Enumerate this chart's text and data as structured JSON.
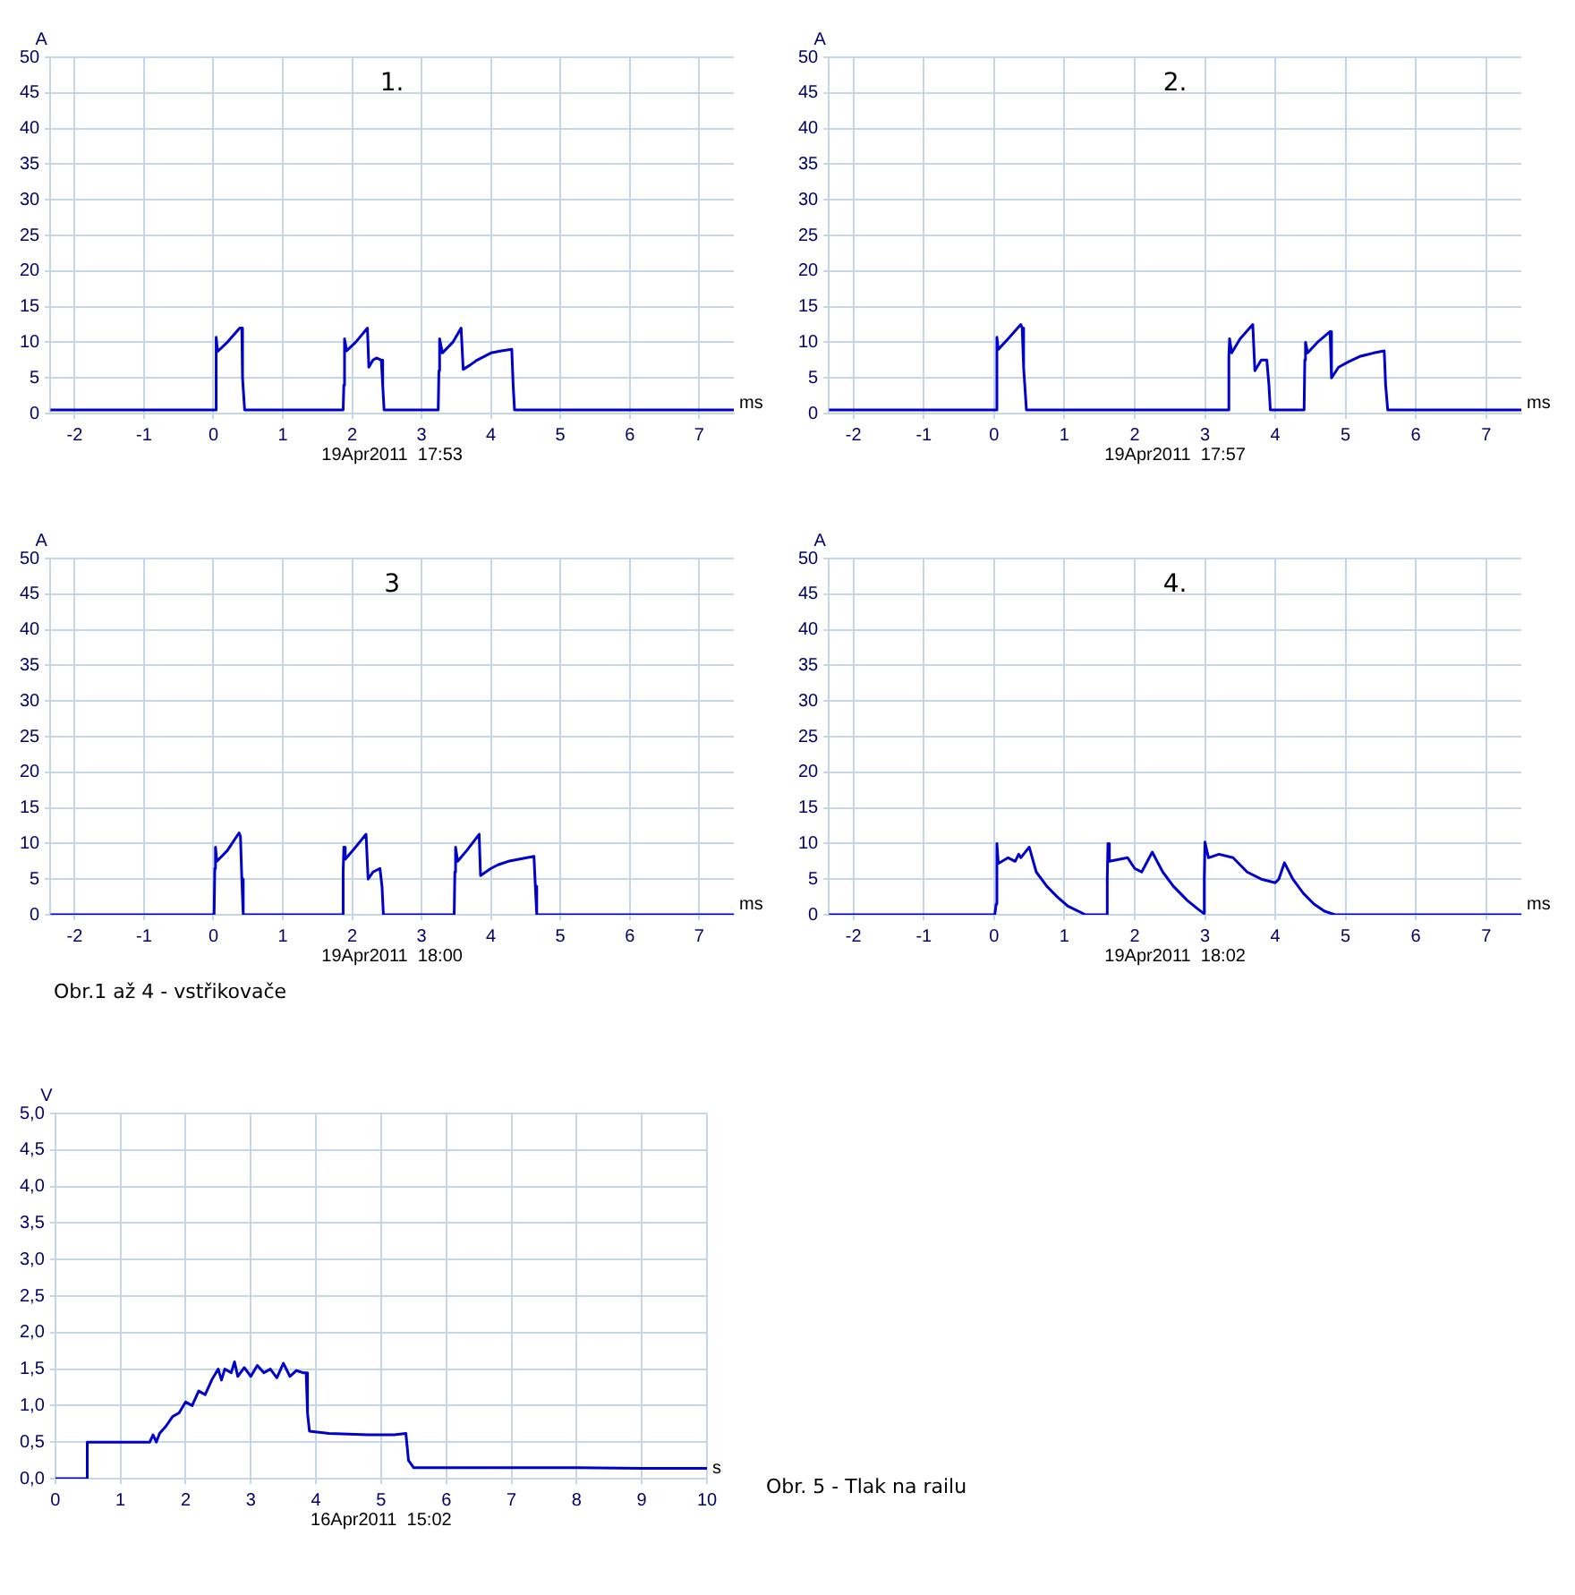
{
  "chart_data": [
    {
      "type": "line",
      "title": "1.",
      "xlabel": "ms",
      "ylabel": "A",
      "annotations": [
        "19Apr2011  17:53"
      ],
      "grid": true,
      "legend": false,
      "marker": "none",
      "line_style": "solid",
      "xlim": [
        -2.35,
        7.5
      ],
      "xticks": [
        -2,
        -1,
        0,
        1,
        2,
        3,
        4,
        5,
        6,
        7
      ],
      "ylim": [
        0,
        50
      ],
      "yticks": [
        0,
        5,
        10,
        15,
        20,
        25,
        30,
        35,
        40,
        45,
        50
      ],
      "series": [
        {
          "color": "#0000cc",
          "x": [
            -2.35,
            0.02,
            0.04,
            0.06,
            0.2,
            0.38,
            0.41,
            0.42,
            0.45,
            1.87,
            1.88,
            1.89,
            1.92,
            2.05,
            2.22,
            2.24,
            2.3,
            2.35,
            2.42,
            2.44,
            2.46,
            3.24,
            3.25,
            3.26,
            3.3,
            3.45,
            3.57,
            3.6,
            3.7,
            3.8,
            4.0,
            4.15,
            4.3,
            4.32,
            4.34,
            7.5
          ],
          "values": [
            0.5,
            0.5,
            10.7,
            8.7,
            10,
            12,
            12,
            5,
            0.5,
            0.5,
            4,
            10.5,
            8.8,
            10,
            12,
            6.5,
            7.5,
            7.8,
            7.5,
            4,
            0.5,
            0.5,
            6,
            10.5,
            8.5,
            10,
            12,
            6.2,
            6.8,
            7.5,
            8.5,
            8.8,
            9,
            4,
            0.5,
            0.5
          ]
        }
      ]
    },
    {
      "type": "line",
      "title": "2.",
      "xlabel": "ms",
      "ylabel": "A",
      "annotations": [
        "19Apr2011  17:57"
      ],
      "grid": true,
      "legend": false,
      "marker": "none",
      "line_style": "solid",
      "xlim": [
        -2.35,
        7.5
      ],
      "xticks": [
        -2,
        -1,
        0,
        1,
        2,
        3,
        4,
        5,
        6,
        7
      ],
      "ylim": [
        0,
        50
      ],
      "yticks": [
        0,
        5,
        10,
        15,
        20,
        25,
        30,
        35,
        40,
        45,
        50
      ],
      "series": [
        {
          "color": "#0000cc",
          "x": [
            -2.35,
            0.02,
            0.04,
            0.06,
            0.2,
            0.38,
            0.4,
            0.42,
            0.46,
            3.33,
            3.34,
            3.35,
            3.38,
            3.5,
            3.68,
            3.71,
            3.8,
            3.88,
            3.91,
            3.93,
            4.41,
            4.42,
            4.43,
            4.46,
            4.6,
            4.78,
            4.8,
            4.9,
            5.05,
            5.2,
            5.4,
            5.55,
            5.57,
            5.6,
            7.5
          ],
          "values": [
            0.5,
            0.5,
            10.7,
            9,
            10.5,
            12.5,
            12,
            6.5,
            0.5,
            0.5,
            8,
            10.5,
            8.5,
            10.5,
            12.5,
            6,
            7.5,
            7.5,
            4,
            0.5,
            0.5,
            7.5,
            10,
            8.5,
            10,
            11.5,
            5,
            6.5,
            7.3,
            8,
            8.5,
            8.8,
            4,
            0.5,
            0.5
          ]
        }
      ]
    },
    {
      "type": "line",
      "title": "3",
      "xlabel": "ms",
      "ylabel": "A",
      "annotations": [
        "19Apr2011  18:00",
        "Obr.1 až 4 - vstřikovače"
      ],
      "grid": true,
      "legend": false,
      "marker": "none",
      "line_style": "solid",
      "xlim": [
        -2.35,
        7.5
      ],
      "xticks": [
        -2,
        -1,
        0,
        1,
        2,
        3,
        4,
        5,
        6,
        7
      ],
      "ylim": [
        0,
        50
      ],
      "yticks": [
        0,
        5,
        10,
        15,
        20,
        25,
        30,
        35,
        40,
        45,
        50
      ],
      "series": [
        {
          "color": "#0000cc",
          "x": [
            -2.35,
            0.01,
            0.02,
            0.03,
            0.05,
            0.2,
            0.37,
            0.39,
            0.41,
            0.43,
            1.86,
            1.87,
            1.88,
            1.9,
            2.05,
            2.2,
            2.23,
            2.3,
            2.4,
            2.43,
            2.45,
            3.47,
            3.48,
            3.49,
            3.52,
            3.65,
            3.83,
            3.85,
            4.0,
            4.1,
            4.25,
            4.4,
            4.62,
            4.64,
            4.66,
            7.5
          ],
          "values": [
            0,
            0,
            6.5,
            9.5,
            7.5,
            9,
            11.5,
            11,
            5,
            0,
            0,
            6,
            9.5,
            7.8,
            9.5,
            11.3,
            5,
            6,
            6.5,
            4,
            0,
            0,
            6,
            9.5,
            7.5,
            9,
            11.3,
            5.5,
            6.5,
            7,
            7.5,
            7.8,
            8.2,
            4,
            0,
            0
          ]
        }
      ]
    },
    {
      "type": "line",
      "title": "4.",
      "xlabel": "ms",
      "ylabel": "A",
      "annotations": [
        "19Apr2011  18:02"
      ],
      "grid": true,
      "legend": false,
      "marker": "none",
      "line_style": "solid",
      "xlim": [
        -2.35,
        7.5
      ],
      "xticks": [
        -2,
        -1,
        0,
        1,
        2,
        3,
        4,
        5,
        6,
        7
      ],
      "ylim": [
        0,
        50
      ],
      "yticks": [
        0,
        5,
        10,
        15,
        20,
        25,
        30,
        35,
        40,
        45,
        50
      ],
      "series": [
        {
          "color": "#0000cc",
          "x": [
            -2.35,
            0.01,
            0.03,
            0.04,
            0.06,
            0.2,
            0.3,
            0.35,
            0.38,
            0.5,
            0.6,
            0.75,
            0.9,
            1.05,
            1.2,
            1.3,
            1.6,
            1.61,
            1.62,
            1.64,
            1.9,
            2.0,
            2.1,
            2.25,
            2.4,
            2.55,
            2.75,
            2.9,
            2.98,
            2.99,
            3.0,
            3.05,
            3.2,
            3.4,
            3.6,
            3.8,
            4.0,
            4.05,
            4.13,
            4.25,
            4.4,
            4.55,
            4.7,
            4.85,
            7.5
          ],
          "values": [
            0,
            0,
            1.5,
            10,
            7.2,
            8,
            7.5,
            8.5,
            8,
            9.5,
            6,
            4,
            2.5,
            1.2,
            0.5,
            0,
            0,
            5,
            10,
            7.5,
            8,
            6.5,
            6,
            8.8,
            6,
            4,
            2,
            0.8,
            0.2,
            5,
            10.2,
            8,
            8.5,
            8,
            6,
            5,
            4.5,
            5,
            7.3,
            5,
            3,
            1.5,
            0.5,
            0,
            0
          ]
        }
      ]
    },
    {
      "type": "line",
      "xlabel": "s",
      "ylabel": "V",
      "annotations": [
        "16Apr2011  15:02",
        "Obr. 5 - Tlak na railu"
      ],
      "grid": true,
      "legend": false,
      "marker": "none",
      "line_style": "solid",
      "xlim": [
        0,
        10
      ],
      "xticks": [
        0,
        1,
        2,
        3,
        4,
        5,
        6,
        7,
        8,
        9,
        10
      ],
      "ylim": [
        0,
        5
      ],
      "yticks": [
        {
          "value": 0,
          "label": "0,0"
        },
        {
          "value": 0.5,
          "label": "0,5"
        },
        {
          "value": 1,
          "label": "1,0"
        },
        {
          "value": 1.5,
          "label": "1,5"
        },
        {
          "value": 2,
          "label": "2,0"
        },
        {
          "value": 2.5,
          "label": "2,5"
        },
        {
          "value": 3,
          "label": "3,0"
        },
        {
          "value": 3.5,
          "label": "3,5"
        },
        {
          "value": 4,
          "label": "4,0"
        },
        {
          "value": 4.5,
          "label": "4,5"
        },
        {
          "value": 5,
          "label": "5,0"
        }
      ],
      "series": [
        {
          "color": "#0000cc",
          "x": [
            0,
            0.48,
            0.49,
            0.8,
            1.2,
            1.45,
            1.5,
            1.55,
            1.6,
            1.7,
            1.8,
            1.9,
            2.0,
            2.1,
            2.2,
            2.3,
            2.4,
            2.5,
            2.55,
            2.6,
            2.7,
            2.75,
            2.8,
            2.9,
            3.0,
            3.1,
            3.2,
            3.3,
            3.4,
            3.5,
            3.6,
            3.7,
            3.8,
            3.85,
            3.87,
            3.9,
            4.2,
            4.8,
            5.2,
            5.38,
            5.42,
            5.5,
            6,
            7,
            8,
            9,
            10
          ],
          "values": [
            0,
            0,
            0.5,
            0.5,
            0.5,
            0.5,
            0.6,
            0.5,
            0.62,
            0.72,
            0.85,
            0.9,
            1.05,
            1.0,
            1.2,
            1.15,
            1.35,
            1.5,
            1.35,
            1.5,
            1.45,
            1.6,
            1.4,
            1.52,
            1.4,
            1.55,
            1.45,
            1.5,
            1.38,
            1.58,
            1.4,
            1.48,
            1.45,
            1.45,
            0.9,
            0.65,
            0.62,
            0.6,
            0.6,
            0.62,
            0.25,
            0.15,
            0.15,
            0.15,
            0.15,
            0.14,
            0.14
          ]
        }
      ]
    }
  ]
}
